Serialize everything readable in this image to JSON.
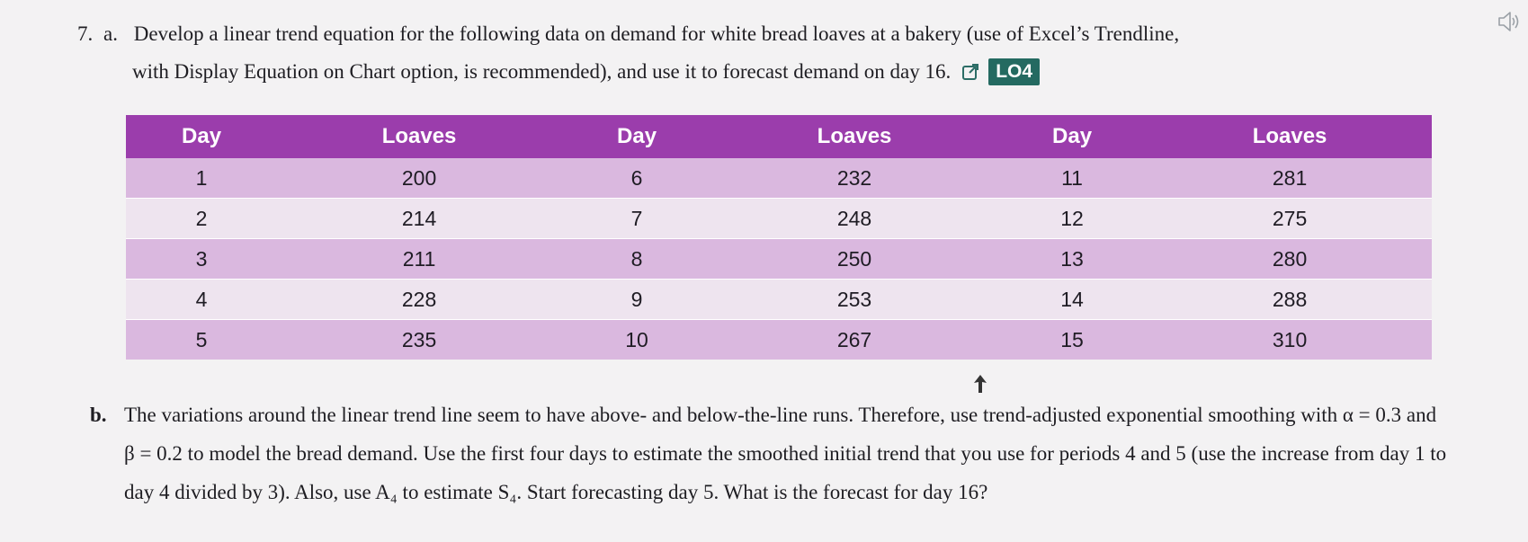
{
  "question": {
    "number": "7.",
    "part_a_label": "a.",
    "part_a_line1": "Develop a linear trend equation for the following data on demand for white bread loaves at a bakery (use of Excel’s Trendline,",
    "part_a_line2": "with Display Equation on Chart option, is recommended), and use it to forecast demand on day 16.",
    "badge": "LO4",
    "part_b_label": "b.",
    "part_b_text": "The variations around the linear trend line seem to have above- and below-the-line runs. Therefore, use trend-adjusted exponential smoothing with α = 0.3 and β = 0.2 to model the bread demand. Use the first four days to estimate the smoothed initial trend that you use for periods 4 and 5 (use the increase from day 1 to day 4 divided by 3). Also, use A₄ to estimate S₄. Start forecasting day 5. What is the forecast for day 16?"
  },
  "table": {
    "headers": [
      "Day",
      "Loaves",
      "Day",
      "Loaves",
      "Day",
      "Loaves"
    ],
    "rows": [
      [
        "1",
        "200",
        "6",
        "232",
        "11",
        "281"
      ],
      [
        "2",
        "214",
        "7",
        "248",
        "12",
        "275"
      ],
      [
        "3",
        "211",
        "8",
        "250",
        "13",
        "280"
      ],
      [
        "4",
        "228",
        "9",
        "253",
        "14",
        "288"
      ],
      [
        "5",
        "235",
        "10",
        "267",
        "15",
        "310"
      ]
    ]
  },
  "icons": {
    "speaker": "speaker-icon",
    "external_link": "external-link-icon"
  },
  "colors": {
    "header_purple": "#9b3dac",
    "row_dark": "#dab8df",
    "row_light": "#eee4ef",
    "badge_teal": "#246a61"
  }
}
